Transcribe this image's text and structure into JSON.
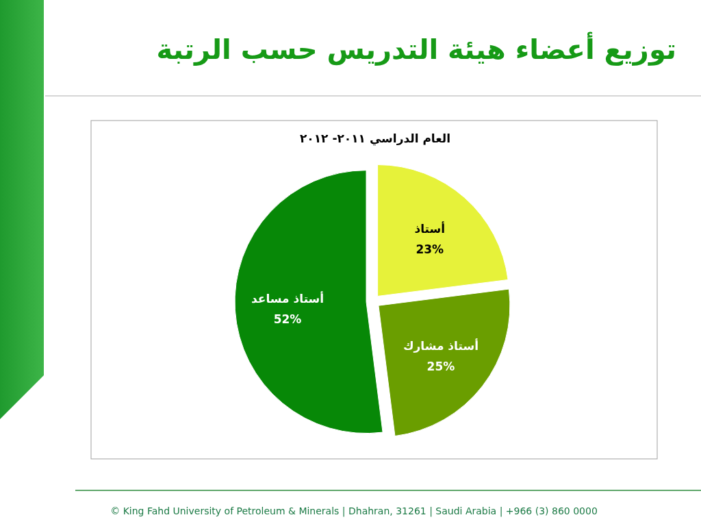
{
  "chart_data": {
    "type": "pie",
    "title": "توزيع أعضاء هيئة التدريس حسب الرتبة",
    "subtitle": "العام الدراسي ٢٠١١- ٢٠١٢",
    "categories": [
      "أستاذ",
      "أستاذ مشارك",
      "أستاذ مساعد"
    ],
    "values": [
      23,
      25,
      52
    ],
    "colors": [
      "#e6f23a",
      "#6a9e00",
      "#078807"
    ],
    "value_labels": [
      "23%",
      "25%",
      "52%"
    ],
    "annotations": [
      "© King Fahd University of Petroleum & Minerals | Dhahran, 31261 | Saudi Arabia | +966 (3) 860 0000"
    ]
  }
}
